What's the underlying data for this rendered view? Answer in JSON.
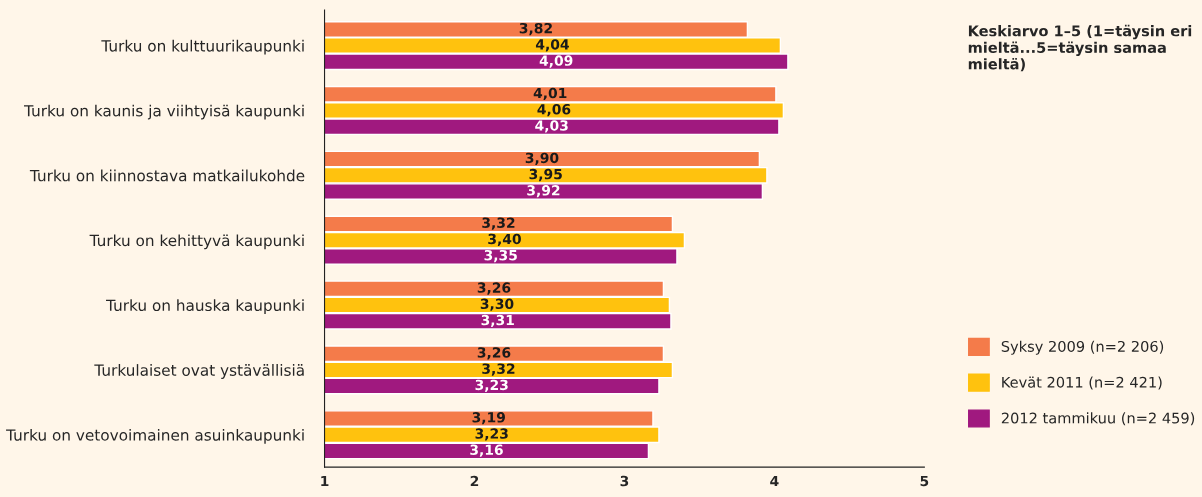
{
  "chart_data": {
    "type": "bar",
    "orientation": "horizontal",
    "categories": [
      "Turku on kulttuurikaupunki",
      "Turku on kaunis ja viihtyisä kaupunki",
      "Turku on kiinnostava matkailukohde",
      "Turku on kehittyvä kaupunki",
      "Turku on hauska kaupunki",
      "Turkulaiset ovat ystävällisiä",
      "Turku on vetovoimainen asuinkaupunki"
    ],
    "series": [
      {
        "name": "Syksy 2009 (n=2 206)",
        "color": "#f47b4a",
        "values": [
          3.82,
          4.01,
          3.9,
          3.32,
          3.26,
          3.26,
          3.19
        ],
        "value_labels": [
          "3,82",
          "4,01",
          "3,90",
          "3,32",
          "3,26",
          "3,26",
          "3,19"
        ]
      },
      {
        "name": "Kevät 2011 (n=2 421)",
        "color": "#ffc20e",
        "values": [
          4.04,
          4.06,
          3.95,
          3.4,
          3.3,
          3.32,
          3.23
        ],
        "value_labels": [
          "4,04",
          "4,06",
          "3,95",
          "3,40",
          "3,30",
          "3,32",
          "3,23"
        ]
      },
      {
        "name": "2012 tammikuu (n=2 459)",
        "color": "#a0197f",
        "values": [
          4.09,
          4.03,
          3.92,
          3.35,
          3.31,
          3.23,
          3.16
        ],
        "value_labels": [
          "4,09",
          "4,03",
          "3,92",
          "3,35",
          "3,31",
          "3,23",
          "3,16"
        ]
      }
    ],
    "xlim": [
      1,
      5
    ],
    "xticks": [
      1,
      2,
      3,
      4,
      5
    ],
    "annotations": [
      "Keskiarvo 1–5 (1=täysin eri mieltä...5=täysin samaa mieltä)"
    ],
    "legend": "right",
    "grid": false
  }
}
